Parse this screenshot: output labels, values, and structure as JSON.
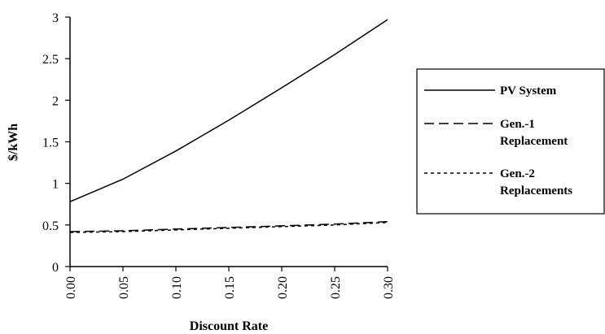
{
  "chart_data": {
    "type": "line",
    "title": "",
    "xlabel": "Discount Rate",
    "ylabel": "$/kWh",
    "xlim": [
      0,
      0.3
    ],
    "ylim": [
      0,
      3
    ],
    "x_ticks": [
      "0.00",
      "0.05",
      "0.10",
      "0.15",
      "0.20",
      "0.25",
      "0.30"
    ],
    "y_ticks": [
      "0",
      "0.5",
      "1",
      "1.5",
      "2",
      "2.5",
      "3"
    ],
    "x": [
      0,
      0.05,
      0.1,
      0.15,
      0.2,
      0.25,
      0.3
    ],
    "grid": false,
    "legend_position": "right",
    "series": [
      {
        "name": "PV System",
        "style": "solid",
        "values": [
          0.78,
          1.05,
          1.39,
          1.76,
          2.15,
          2.55,
          2.97
        ]
      },
      {
        "name": "Gen.-1 Replacement",
        "style": "dashed",
        "values": [
          0.42,
          0.43,
          0.45,
          0.47,
          0.49,
          0.51,
          0.54
        ]
      },
      {
        "name": "Gen.-2 Replacements",
        "style": "dotted",
        "values": [
          0.41,
          0.42,
          0.44,
          0.46,
          0.48,
          0.5,
          0.53
        ]
      }
    ],
    "legend": [
      {
        "line1": "PV System",
        "line2": ""
      },
      {
        "line1": "Gen.-1",
        "line2": "Replacement"
      },
      {
        "line1": "Gen.-2",
        "line2": "Replacements"
      }
    ]
  }
}
